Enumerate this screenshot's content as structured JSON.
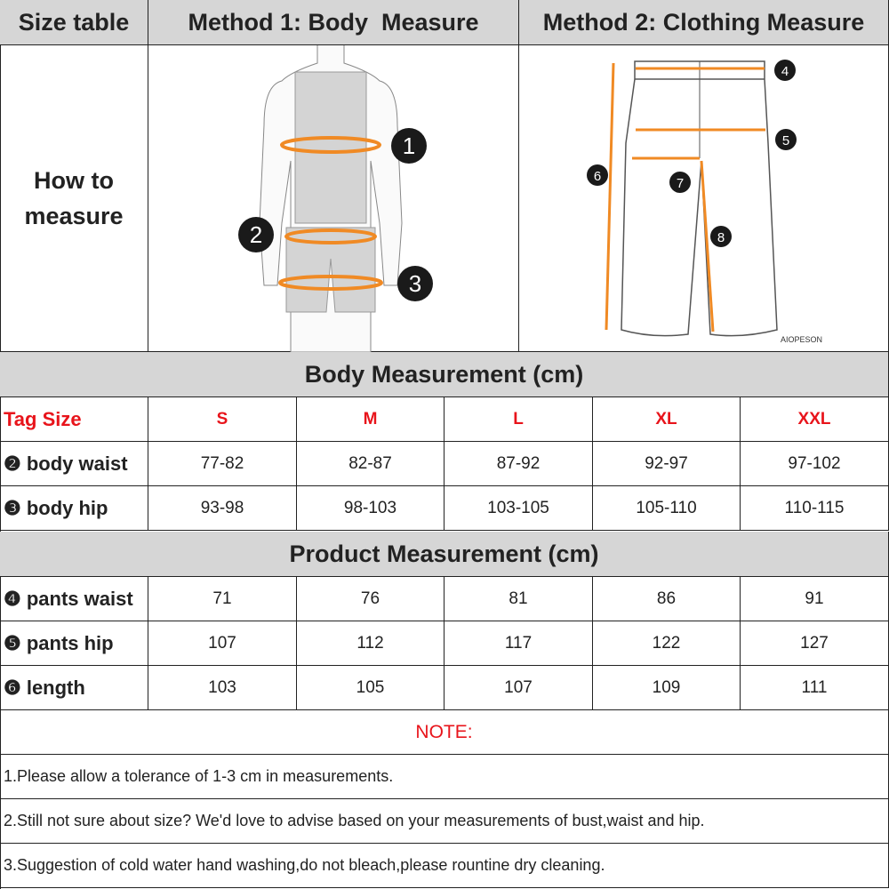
{
  "header": {
    "size_table": "Size table",
    "method1": "Method 1: Body  Measure",
    "method2": "Method 2: Clothing Measure"
  },
  "how_to": {
    "label_line1": "How to",
    "label_line2": "measure",
    "body_markers": [
      "1",
      "2",
      "3"
    ],
    "pants_markers": [
      "4",
      "5",
      "6",
      "7",
      "8"
    ],
    "watermark": "AIOPESON"
  },
  "accent_color": "#f08a24",
  "sizes": [
    "S",
    "M",
    "L",
    "XL",
    "XXL"
  ],
  "body": {
    "title": "Body Measurement (cm)",
    "tag_label": "Tag Size",
    "rows": [
      {
        "label": "❷ body waist",
        "values": [
          "77-82",
          "82-87",
          "87-92",
          "92-97",
          "97-102"
        ]
      },
      {
        "label": "❸ body hip",
        "values": [
          "93-98",
          "98-103",
          "103-105",
          "105-110",
          "110-115"
        ]
      }
    ]
  },
  "product": {
    "title": "Product Measurement (cm)",
    "rows": [
      {
        "label": "❹ pants waist",
        "values": [
          "71",
          "76",
          "81",
          "86",
          "91"
        ]
      },
      {
        "label": "❺ pants hip",
        "values": [
          "107",
          "112",
          "117",
          "122",
          "127"
        ]
      },
      {
        "label": "❻ length",
        "values": [
          "103",
          "105",
          "107",
          "109",
          "111"
        ]
      }
    ]
  },
  "notes": {
    "title": "NOTE:",
    "items": [
      "1.Please allow a tolerance of 1-3 cm in measurements.",
      "2.Still not sure about size? We'd love to advise based on your measurements of bust,waist and hip.",
      "3.Suggestion of cold water hand washing,do not bleach,please rountine dry cleaning."
    ]
  }
}
